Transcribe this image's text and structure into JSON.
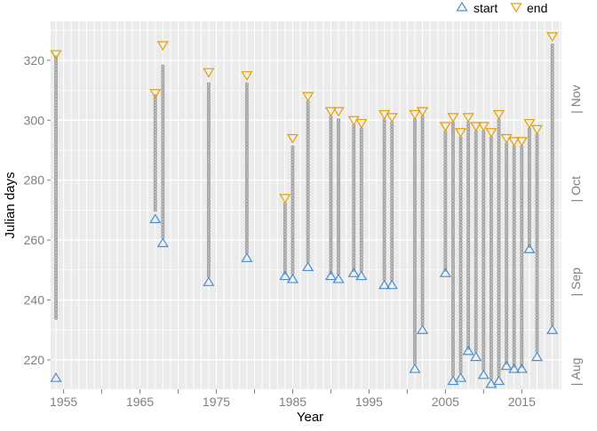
{
  "colors": {
    "panel_bg": "#ebebeb",
    "grid": "#ffffff",
    "dot_fill": "#bdbdbd",
    "dot_stroke": "#8f8f8f",
    "start": "#4a8ed0",
    "end": "#e69f00",
    "axis_text": "#7f7f7f",
    "axis_title": "#000000"
  },
  "chart_data": {
    "type": "scatter",
    "title": "",
    "xlabel": "Year",
    "ylabel": "Julian days",
    "xlim": [
      1953.3,
      2020.2
    ],
    "ylim": [
      210.2,
      333.0
    ],
    "x_ticks": [
      1955,
      1965,
      1975,
      1985,
      1995,
      2005,
      2015
    ],
    "x_tick_labels": [
      "1955",
      "1965",
      "1975",
      "1985",
      "1995",
      "2005",
      "2015"
    ],
    "x_minor_ticks": [
      1960,
      1970,
      1980,
      1990,
      2000,
      2010
    ],
    "y_ticks": [
      220,
      240,
      260,
      280,
      300,
      320
    ],
    "y_tick_labels": [
      "220",
      "240",
      "260",
      "280",
      "300",
      "320"
    ],
    "grid": true,
    "legend": {
      "position": "top-right",
      "items": [
        {
          "key": "start",
          "label": "start",
          "marker": "triangle-up"
        },
        {
          "key": "end",
          "label": "end",
          "marker": "triangle-down"
        }
      ]
    },
    "month_labels": [
      {
        "label": "| Aug",
        "day": 216
      },
      {
        "label": "| Sep",
        "day": 246
      },
      {
        "label": "| Oct",
        "day": 277
      },
      {
        "label": "| Nov",
        "day": 307
      }
    ],
    "years": [
      {
        "year": 1954,
        "start": 214,
        "end": 322,
        "min": 234,
        "max": 321
      },
      {
        "year": 1967,
        "start": 267,
        "end": 309,
        "min": 270,
        "max": 308
      },
      {
        "year": 1968,
        "start": 259,
        "end": 325,
        "min": 261,
        "max": 318
      },
      {
        "year": 1974,
        "start": 246,
        "end": 316,
        "min": 248,
        "max": 312
      },
      {
        "year": 1979,
        "start": 254,
        "end": 315,
        "min": 256,
        "max": 312
      },
      {
        "year": 1984,
        "start": 248,
        "end": 274,
        "min": 249,
        "max": 272
      },
      {
        "year": 1985,
        "start": 247,
        "end": 294,
        "min": 249,
        "max": 291
      },
      {
        "year": 1987,
        "start": 251,
        "end": 308,
        "min": 253,
        "max": 306
      },
      {
        "year": 1990,
        "start": 248,
        "end": 303,
        "min": 249,
        "max": 301
      },
      {
        "year": 1991,
        "start": 247,
        "end": 303,
        "min": 249,
        "max": 300
      },
      {
        "year": 1993,
        "start": 249,
        "end": 300,
        "min": 250,
        "max": 298
      },
      {
        "year": 1994,
        "start": 248,
        "end": 299,
        "min": 250,
        "max": 297
      },
      {
        "year": 1997,
        "start": 245,
        "end": 302,
        "min": 247,
        "max": 300
      },
      {
        "year": 1998,
        "start": 245,
        "end": 301,
        "min": 247,
        "max": 299
      },
      {
        "year": 2001,
        "start": 217,
        "end": 302,
        "min": 219,
        "max": 300
      },
      {
        "year": 2002,
        "start": 230,
        "end": 303,
        "min": 232,
        "max": 301
      },
      {
        "year": 2005,
        "start": 249,
        "end": 298,
        "min": 250,
        "max": 296
      },
      {
        "year": 2006,
        "start": 213,
        "end": 301,
        "min": 215,
        "max": 299
      },
      {
        "year": 2007,
        "start": 214,
        "end": 296,
        "min": 216,
        "max": 294
      },
      {
        "year": 2008,
        "start": 223,
        "end": 301,
        "min": 224,
        "max": 299
      },
      {
        "year": 2009,
        "start": 221,
        "end": 298,
        "min": 223,
        "max": 296
      },
      {
        "year": 2010,
        "start": 215,
        "end": 298,
        "min": 217,
        "max": 296
      },
      {
        "year": 2011,
        "start": 212,
        "end": 296,
        "min": 214,
        "max": 294
      },
      {
        "year": 2012,
        "start": 213,
        "end": 302,
        "min": 215,
        "max": 300
      },
      {
        "year": 2013,
        "start": 218,
        "end": 294,
        "min": 219,
        "max": 292
      },
      {
        "year": 2014,
        "start": 217,
        "end": 293,
        "min": 218,
        "max": 291
      },
      {
        "year": 2015,
        "start": 217,
        "end": 293,
        "min": 218,
        "max": 291
      },
      {
        "year": 2016,
        "start": 257,
        "end": 299,
        "min": 258,
        "max": 297
      },
      {
        "year": 2017,
        "start": 221,
        "end": 297,
        "min": 223,
        "max": 295
      },
      {
        "year": 2019,
        "start": 230,
        "end": 328,
        "min": 232,
        "max": 325
      }
    ]
  }
}
